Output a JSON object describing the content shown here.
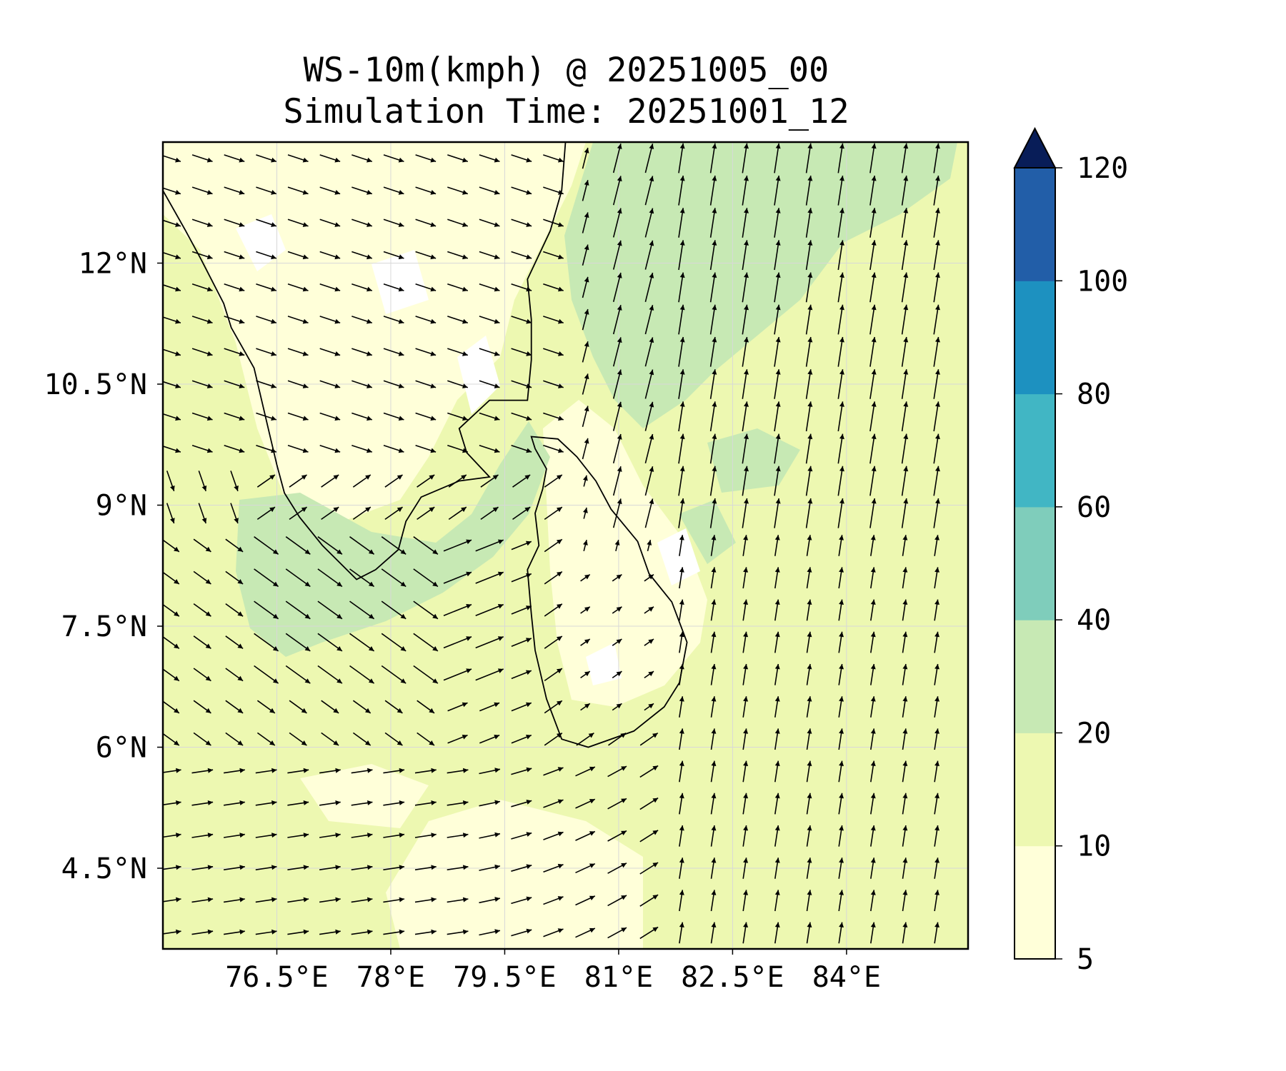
{
  "title": {
    "line1": "WS-10m(kmph) @ 20251005_00",
    "line2": "Simulation Time: 20251001_12"
  },
  "map_extent": {
    "lon": [
      75.0,
      85.6
    ],
    "lat": [
      3.5,
      13.5
    ]
  },
  "x_ticks": [
    {
      "value": 76.5,
      "label": "76.5°E"
    },
    {
      "value": 78.0,
      "label": "78°E"
    },
    {
      "value": 79.5,
      "label": "79.5°E"
    },
    {
      "value": 81.0,
      "label": "81°E"
    },
    {
      "value": 82.5,
      "label": "82.5°E"
    },
    {
      "value": 84.0,
      "label": "84°E"
    }
  ],
  "y_ticks": [
    {
      "value": 12.0,
      "label": "12°N"
    },
    {
      "value": 10.5,
      "label": "10.5°N"
    },
    {
      "value": 9.0,
      "label": "9°N"
    },
    {
      "value": 7.5,
      "label": "7.5°N"
    },
    {
      "value": 6.0,
      "label": "6°N"
    },
    {
      "value": 4.5,
      "label": "4.5°N"
    }
  ],
  "colorbar": {
    "levels": [
      5,
      10,
      20,
      40,
      60,
      80,
      100,
      120
    ],
    "labels": [
      "5",
      "10",
      "20",
      "40",
      "60",
      "80",
      "100",
      "120"
    ],
    "colors": [
      "#ffffd9",
      "#edf8b1",
      "#c7e9b4",
      "#7fcdbb",
      "#41b6c4",
      "#1d91c0",
      "#225ea8",
      "#0c2c84"
    ],
    "extend": "max",
    "extend_color": "#081d58"
  },
  "colors": {
    "coastline": "#000000",
    "arrow": "#000000",
    "gridline": "#d8d8d8",
    "frame": "#000000"
  }
}
